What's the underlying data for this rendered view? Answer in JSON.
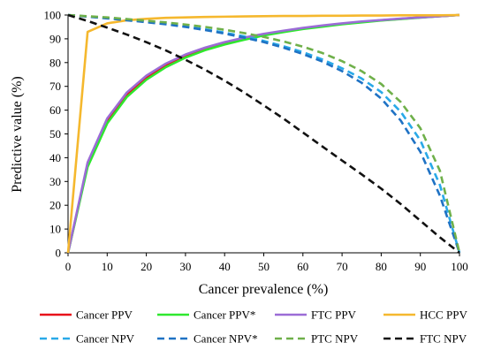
{
  "chart_data": {
    "type": "line",
    "xlabel": "Cancer prevalence (%)",
    "ylabel": "Predictive value (%)",
    "xlim": [
      0,
      100
    ],
    "ylim": [
      0,
      100
    ],
    "x_ticks": [
      0,
      10,
      20,
      30,
      40,
      50,
      60,
      70,
      80,
      90,
      100
    ],
    "y_ticks": [
      0,
      10,
      20,
      30,
      40,
      50,
      60,
      70,
      80,
      90,
      100
    ],
    "grid": false,
    "legend": "bottom",
    "x": [
      0,
      5,
      10,
      15,
      20,
      25,
      30,
      35,
      40,
      45,
      50,
      55,
      60,
      65,
      70,
      75,
      80,
      85,
      90,
      95,
      100
    ],
    "series": [
      {
        "name": "Cancer PPV",
        "color": "#e8121a",
        "dash": "solid",
        "values": [
          0,
          36.9,
          55.3,
          66.3,
          73.6,
          78.8,
          82.7,
          85.7,
          88.1,
          90.0,
          91.7,
          93.1,
          94.3,
          95.3,
          96.3,
          97.1,
          97.8,
          98.4,
          99.0,
          99.5,
          100
        ]
      },
      {
        "name": "Cancer PPV*",
        "color": "#2ee82e",
        "dash": "solid",
        "values": [
          0,
          36.1,
          54.4,
          65.5,
          72.8,
          78.1,
          82.1,
          85.2,
          87.6,
          89.6,
          91.4,
          92.8,
          94.1,
          95.1,
          96.1,
          96.9,
          97.7,
          98.3,
          98.9,
          99.5,
          100
        ]
      },
      {
        "name": "FTC PPV",
        "color": "#9b6cd6",
        "dash": "solid",
        "values": [
          0,
          38.0,
          56.5,
          67.4,
          74.5,
          79.6,
          83.4,
          86.3,
          88.6,
          90.5,
          92.1,
          93.4,
          94.6,
          95.6,
          96.5,
          97.3,
          97.9,
          98.5,
          99.0,
          99.5,
          100
        ]
      },
      {
        "name": "HCC PPV",
        "color": "#f5b82e",
        "dash": "solid",
        "values": [
          0,
          92.9,
          96.5,
          97.8,
          98.4,
          98.8,
          99.0,
          99.2,
          99.3,
          99.4,
          99.5,
          99.6,
          99.6,
          99.7,
          99.7,
          99.8,
          99.8,
          99.9,
          99.9,
          99.9,
          100
        ]
      },
      {
        "name": "Cancer NPV",
        "color": "#29a9e8",
        "dash": "dashed",
        "values": [
          100,
          99.4,
          98.7,
          98.0,
          97.2,
          96.3,
          95.2,
          94.0,
          92.6,
          91.0,
          89.1,
          86.9,
          84.4,
          81.3,
          77.6,
          73.3,
          67.6,
          59.3,
          47.3,
          28.5,
          0
        ]
      },
      {
        "name": "Cancer NPV*",
        "color": "#1f72c4",
        "dash": "dashed",
        "values": [
          100,
          99.3,
          98.6,
          97.8,
          97.0,
          96.1,
          95.0,
          93.7,
          92.2,
          90.5,
          88.6,
          86.3,
          83.6,
          80.4,
          76.4,
          71.5,
          64.9,
          55.6,
          42.5,
          24.0,
          0
        ]
      },
      {
        "name": "PTC NPV",
        "color": "#6fb04a",
        "dash": "dashed",
        "values": [
          100,
          99.5,
          99.0,
          98.3,
          97.6,
          96.9,
          96.0,
          95.0,
          93.8,
          92.4,
          90.8,
          88.9,
          86.7,
          84.0,
          80.6,
          76.4,
          71.0,
          63.4,
          52.4,
          34.5,
          0
        ]
      },
      {
        "name": "FTC NPV",
        "color": "#111111",
        "dash": "dashed",
        "values": [
          100,
          97.5,
          94.7,
          91.8,
          88.6,
          85.1,
          81.2,
          77.0,
          72.4,
          67.4,
          62.0,
          56.5,
          50.6,
          44.7,
          38.8,
          33.0,
          27.0,
          20.5,
          13.5,
          6.5,
          0
        ]
      }
    ]
  }
}
